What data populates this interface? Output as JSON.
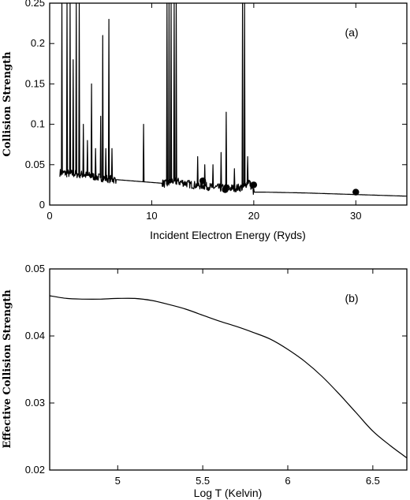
{
  "chart_data": [
    {
      "type": "line",
      "panel_label": "(a)",
      "xlabel": "Incident Electron Energy (Ryds)",
      "ylabel": "Collision  Strength",
      "xlim": [
        0,
        35
      ],
      "ylim": [
        0,
        0.25
      ],
      "x_ticks": [
        0,
        10,
        20,
        30
      ],
      "x_tick_labels": [
        "0",
        "10",
        "20",
        "30"
      ],
      "y_ticks": [
        0,
        0.05,
        0.1,
        0.15,
        0.2,
        0.25
      ],
      "y_tick_labels": [
        "0",
        "0.05",
        "0.1",
        "0.15",
        "0.2",
        "0.25"
      ],
      "background": {
        "x": [
          1.0,
          2.0,
          3.0,
          4.0,
          5.0,
          6.0,
          7.0,
          8.0,
          9.0,
          10.0,
          11.0,
          11.5,
          12.0,
          13.0,
          14.0,
          15.0,
          16.0,
          17.0,
          18.0,
          19.0,
          19.5,
          20.0,
          21.0,
          25.0,
          30.0,
          35.0
        ],
        "y": [
          0.04,
          0.039,
          0.038,
          0.036,
          0.034,
          0.032,
          0.031,
          0.03,
          0.029,
          0.028,
          0.027,
          0.026,
          0.03,
          0.028,
          0.025,
          0.024,
          0.022,
          0.021,
          0.021,
          0.022,
          0.03,
          0.016,
          0.016,
          0.015,
          0.013,
          0.011
        ]
      },
      "resonances": [
        {
          "x": 1.2,
          "y": 0.25
        },
        {
          "x": 1.7,
          "y": 0.25
        },
        {
          "x": 2.0,
          "y": 0.25
        },
        {
          "x": 2.3,
          "y": 0.18
        },
        {
          "x": 2.6,
          "y": 0.25
        },
        {
          "x": 2.9,
          "y": 0.25
        },
        {
          "x": 3.3,
          "y": 0.1
        },
        {
          "x": 3.7,
          "y": 0.08
        },
        {
          "x": 4.1,
          "y": 0.15
        },
        {
          "x": 4.5,
          "y": 0.07
        },
        {
          "x": 5.0,
          "y": 0.11
        },
        {
          "x": 5.2,
          "y": 0.21
        },
        {
          "x": 5.5,
          "y": 0.07
        },
        {
          "x": 5.8,
          "y": 0.23
        },
        {
          "x": 6.1,
          "y": 0.07
        },
        {
          "x": 9.2,
          "y": 0.1
        },
        {
          "x": 11.5,
          "y": 0.25
        },
        {
          "x": 11.7,
          "y": 0.25
        },
        {
          "x": 11.9,
          "y": 0.25
        },
        {
          "x": 12.2,
          "y": 0.25
        },
        {
          "x": 12.4,
          "y": 0.25
        },
        {
          "x": 14.5,
          "y": 0.06
        },
        {
          "x": 15.2,
          "y": 0.05
        },
        {
          "x": 16.0,
          "y": 0.05
        },
        {
          "x": 16.8,
          "y": 0.065
        },
        {
          "x": 17.3,
          "y": 0.115
        },
        {
          "x": 18.1,
          "y": 0.045
        },
        {
          "x": 18.9,
          "y": 0.25
        },
        {
          "x": 19.1,
          "y": 0.25
        },
        {
          "x": 19.4,
          "y": 0.06
        }
      ],
      "points": {
        "x": [
          15.0,
          17.2,
          20.0,
          30.0
        ],
        "y": [
          0.03,
          0.019,
          0.025,
          0.016
        ]
      }
    },
    {
      "type": "line",
      "panel_label": "(b)",
      "xlabel": "Log T (Kelvin)",
      "ylabel": "Effective Collision Strength",
      "xlim": [
        4.6,
        6.7
      ],
      "ylim": [
        0.02,
        0.05
      ],
      "x_ticks": [
        5,
        5.5,
        6,
        6.5
      ],
      "x_tick_labels": [
        "5",
        "5.5",
        "6",
        "6.5"
      ],
      "y_ticks": [
        0.02,
        0.03,
        0.04,
        0.05
      ],
      "y_tick_labels": [
        "0.02",
        "0.03",
        "0.04",
        "0.05"
      ],
      "series": [
        {
          "x": [
            4.6,
            4.7,
            4.8,
            4.9,
            5.0,
            5.1,
            5.2,
            5.3,
            5.4,
            5.5,
            5.6,
            5.7,
            5.8,
            5.9,
            6.0,
            6.1,
            6.2,
            6.3,
            6.4,
            6.5,
            6.6,
            6.7
          ],
          "y": [
            0.046,
            0.0456,
            0.0455,
            0.0455,
            0.0456,
            0.0456,
            0.0453,
            0.0447,
            0.044,
            0.0431,
            0.0422,
            0.0414,
            0.0405,
            0.0395,
            0.038,
            0.0362,
            0.034,
            0.0314,
            0.0286,
            0.0258,
            0.0237,
            0.0218
          ]
        }
      ]
    }
  ]
}
